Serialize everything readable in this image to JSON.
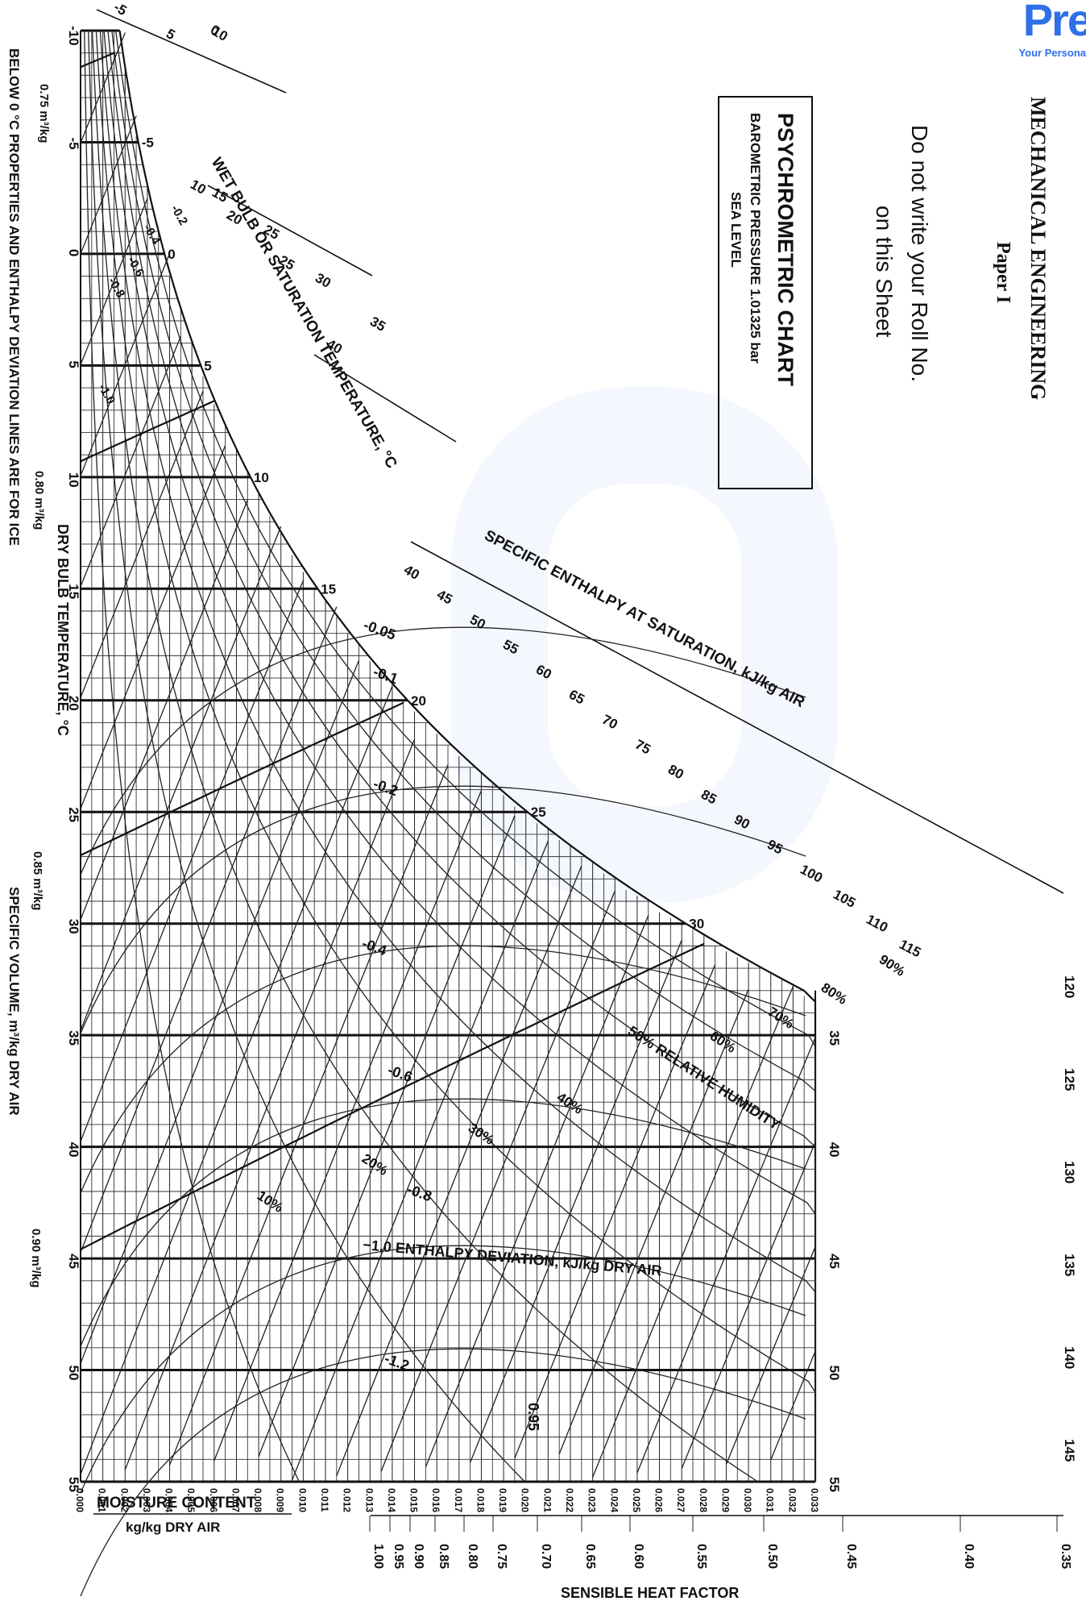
{
  "header": {
    "subject": "MECHANICAL ENGINEERING",
    "paper": "Paper I",
    "notice_line1": "Do not write your Roll No.",
    "notice_line2": "on this Sheet"
  },
  "title_box": {
    "title": "PSYCHROMETRIC CHART",
    "line2": "BAROMETRIC PRESSURE 1.01325 bar",
    "line3": "SEA LEVEL"
  },
  "logo": {
    "text": "Pre",
    "tagline": "Your Persona"
  },
  "labels": {
    "dry_bulb_axis": "DRY BULB TEMPERATURE, °C",
    "wet_bulb": "WET BULB OR SATURATION TEMPERATURE, °C",
    "specific_enthalpy": "SPECIFIC ENTHALPY AT SATURATION, kJ/kg AIR",
    "relative_humidity": "50% RELATIVE HUMIDITY",
    "enthalpy_deviation": "−1.0 ENTHALPY DEVIATION, kJ/kg DRY AIR",
    "specific_volume": "SPECIFIC VOLUME, m³/kg DRY AIR",
    "ice_note": "BELOW 0 °C PROPERTIES AND ENTHALPY DEVIATION LINES ARE FOR ICE",
    "moisture_title": "MOISTURE CONTENT",
    "moisture_unit": "kg/kg DRY AIR",
    "shf_title": "SENSIBLE HEAT FACTOR"
  },
  "dry_bulb_ticks": [
    "-10",
    "-5",
    "0",
    "5",
    "10",
    "15",
    "20",
    "25",
    "30",
    "35",
    "40",
    "45",
    "50",
    "55"
  ],
  "moisture_ticks": [
    "0.000",
    "0.001",
    "0.002",
    "0.003",
    "0.004",
    "0.005",
    "0.006",
    "0.007",
    "0.008",
    "0.009",
    "0.010",
    "0.011",
    "0.012",
    "0.013",
    "0.014",
    "0.015",
    "0.016",
    "0.017",
    "0.018",
    "0.019",
    "0.020",
    "0.021",
    "0.022",
    "0.023",
    "0.024",
    "0.025",
    "0.026",
    "0.027",
    "0.028",
    "0.029",
    "0.030",
    "0.031",
    "0.032",
    "0.033"
  ],
  "shf_ticks": [
    "1.00",
    "0.95",
    "0.90",
    "0.85",
    "0.80",
    "0.75",
    "0.70",
    "0.65",
    "0.60",
    "0.55",
    "0.50",
    "0.45",
    "0.40",
    "0.35"
  ],
  "enthalpy_scale_ticks": [
    "-5",
    "0",
    "5",
    "10",
    "10",
    "15",
    "20",
    "25",
    "25",
    "30",
    "35",
    "40",
    "40",
    "45",
    "50",
    "55",
    "60",
    "65",
    "70",
    "75",
    "80",
    "85",
    "90",
    "95",
    "100",
    "105",
    "110",
    "115"
  ],
  "right_enthalpy_ticks": [
    "120",
    "125",
    "130",
    "135",
    "140",
    "145"
  ],
  "right_db_ticks": [
    "35",
    "40",
    "45",
    "50",
    "55"
  ],
  "wet_bulb_sat_ticks": [
    "-5",
    "0",
    "5",
    "10",
    "15",
    "20",
    "25",
    "30"
  ],
  "rh_labels": [
    "90%",
    "80%",
    "70%",
    "60%",
    "40%",
    "30%",
    "20%",
    "10%"
  ],
  "deviation_labels": [
    "-0.05",
    "-0.1",
    "-0.2",
    "-0.4",
    "-0.6",
    "-0.8",
    "-1.2"
  ],
  "ice_deviation_labels": [
    "-0.2",
    "-0.4",
    "-0.6",
    "-0.8",
    "-1.0"
  ],
  "volume_labels": [
    "0.75 m³/kg",
    "0.80 m³/kg",
    "0.85 m³/kg",
    "0.90 m³/kg"
  ],
  "shf_marker": "0.95"
}
